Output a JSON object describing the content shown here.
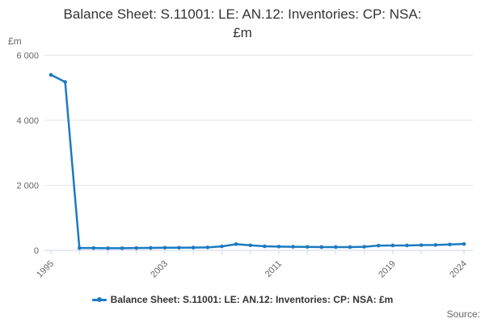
{
  "title_lines": [
    "Balance Sheet: S.11001: LE: AN.12: Inventories: CP: NSA:",
    "£m"
  ],
  "y_axis_unit_label": "£m",
  "legend": {
    "label": "Balance Sheet: S.11001: LE: AN.12: Inventories: CP: NSA: £m"
  },
  "source_label": "Source:",
  "colors": {
    "line": "#1c7ac1",
    "grid": "#e6e6e6",
    "axis": "#ccd6eb",
    "tick_label": "#666666",
    "title": "#333333"
  },
  "chart_data": {
    "type": "line",
    "title": "Balance Sheet: S.11001: LE: AN.12: Inventories: CP: NSA: £m",
    "xlabel": "",
    "ylabel": "£m",
    "ylim": [
      0,
      6000
    ],
    "yticks": [
      0,
      2000,
      4000,
      6000
    ],
    "ytick_labels": [
      "0",
      "2 000",
      "4 000",
      "6 000"
    ],
    "xticks": [
      1995,
      1997,
      1999,
      2001,
      2003,
      2005,
      2007,
      2009,
      2011,
      2013,
      2015,
      2017,
      2019,
      2021,
      2024
    ],
    "xticks_labeled": [
      1995,
      2003,
      2011,
      2019,
      2024
    ],
    "grid": true,
    "legend_position": "bottom",
    "x": [
      1995,
      1996,
      1997,
      1998,
      1999,
      2000,
      2001,
      2002,
      2003,
      2004,
      2005,
      2006,
      2007,
      2008,
      2009,
      2010,
      2011,
      2012,
      2013,
      2014,
      2015,
      2016,
      2017,
      2018,
      2019,
      2020,
      2021,
      2022,
      2023,
      2024
    ],
    "values": [
      5400,
      5180,
      70,
      70,
      65,
      65,
      70,
      75,
      80,
      80,
      85,
      90,
      120,
      190,
      155,
      125,
      115,
      110,
      105,
      100,
      100,
      100,
      110,
      145,
      150,
      150,
      160,
      165,
      180,
      195
    ]
  }
}
